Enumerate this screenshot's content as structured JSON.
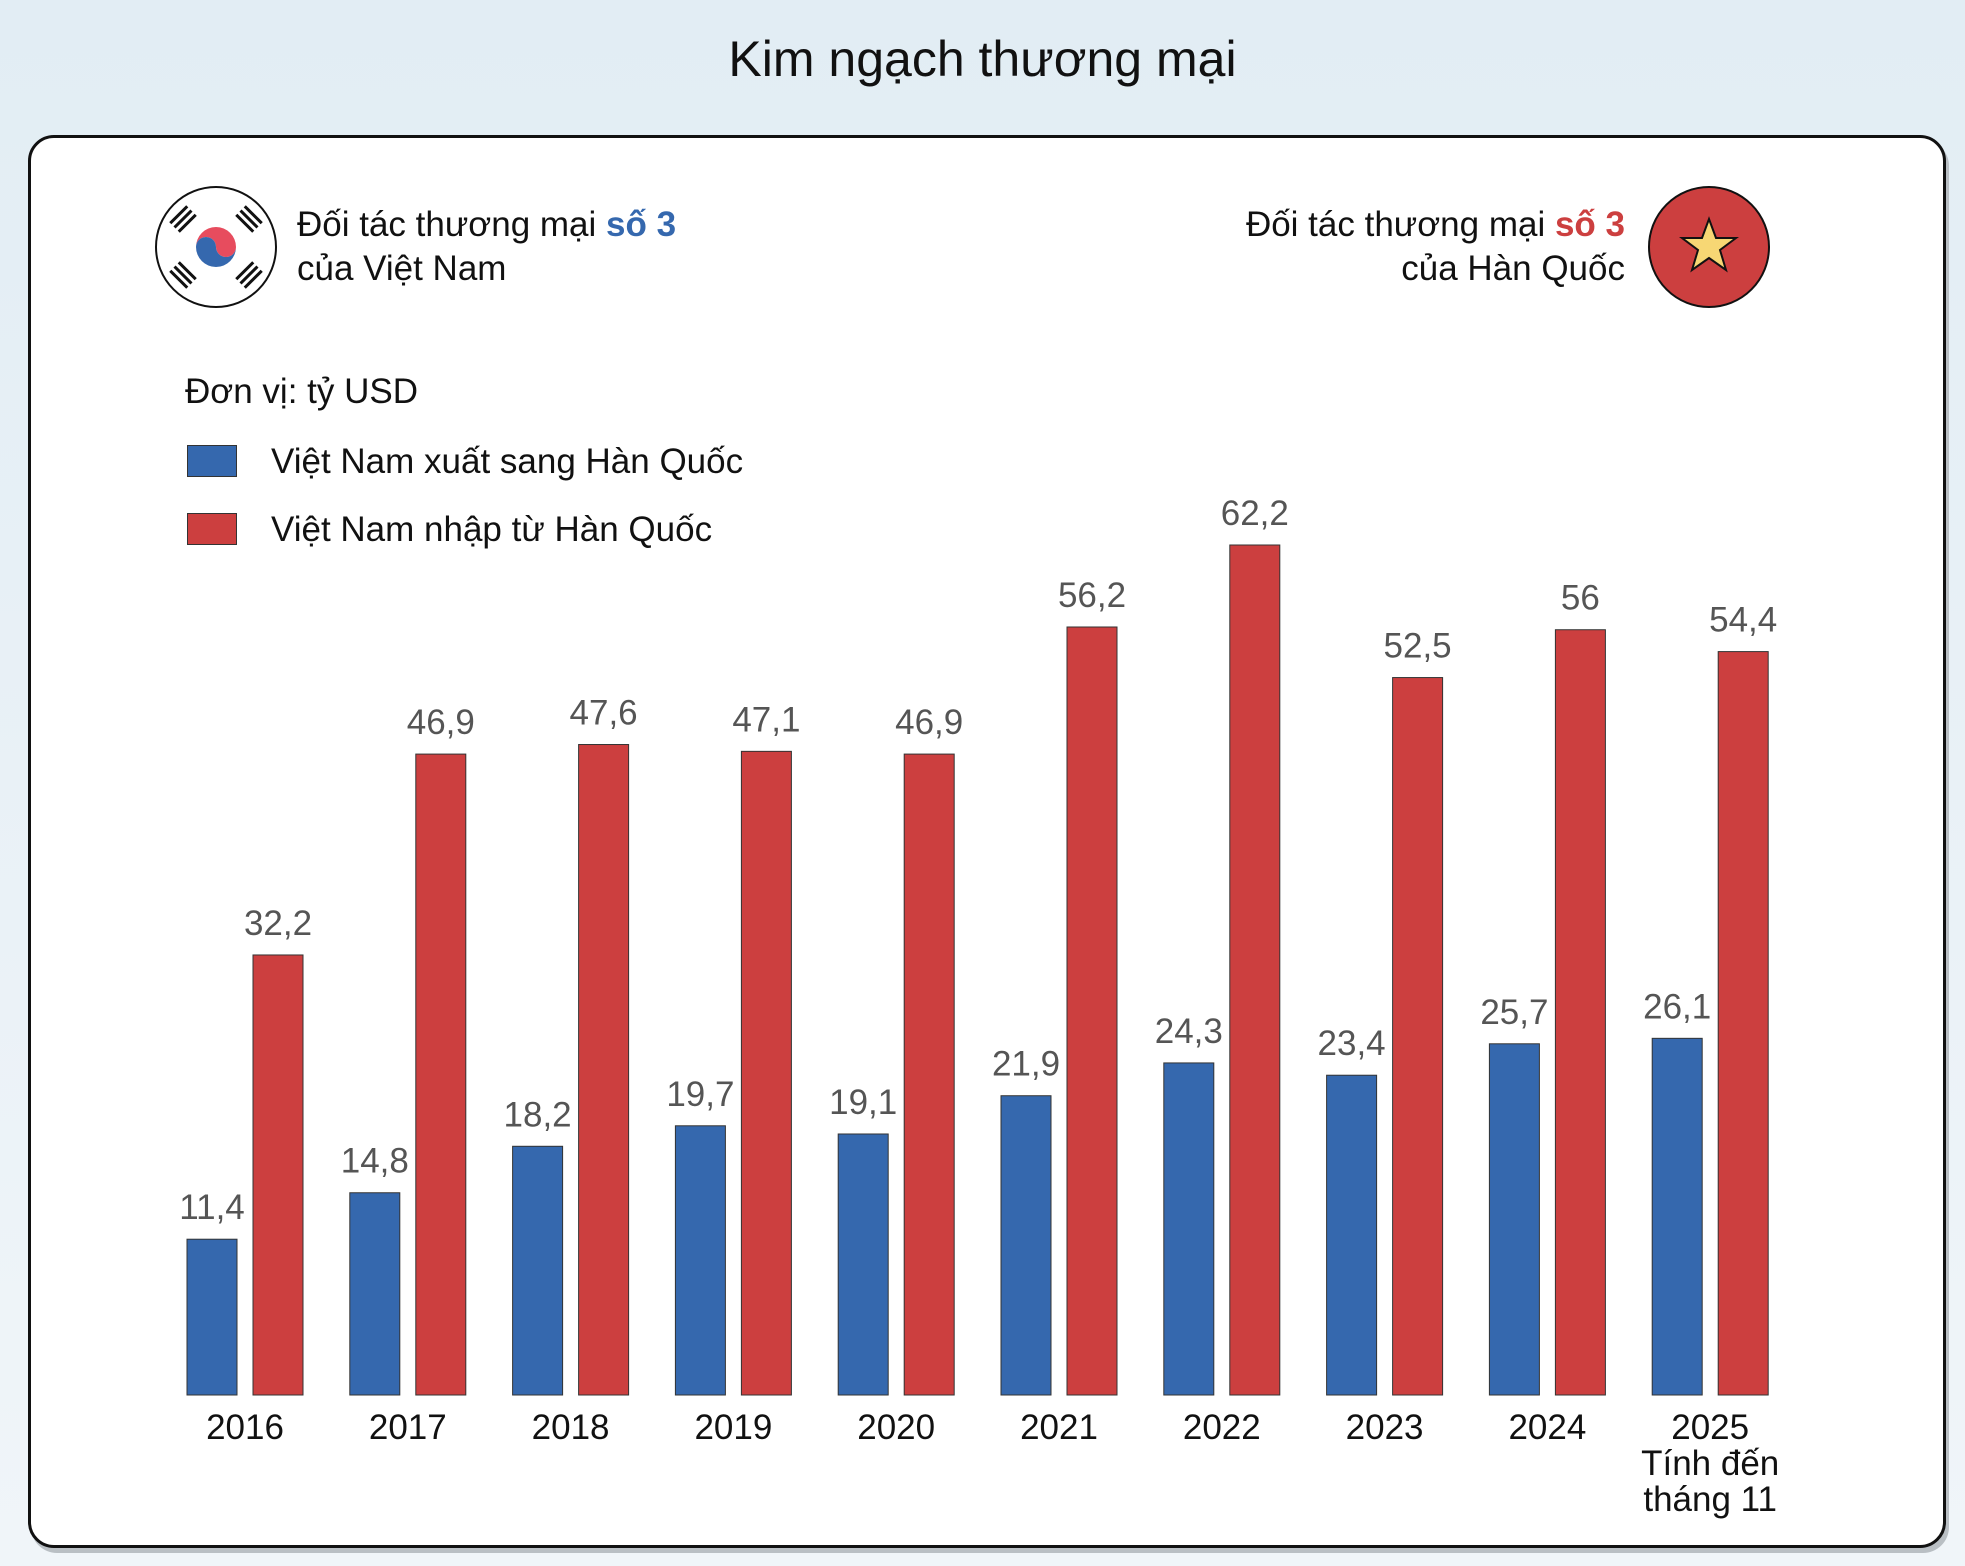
{
  "title": "Kim ngạch thương mại",
  "partner_left": {
    "line1": "Đối tác thương mại ",
    "rank": "số 3",
    "line2": "của Việt Nam",
    "flag-icon": "south-korea-flag",
    "rank_color": "#3568ae"
  },
  "partner_right": {
    "line1": "Đối tác thương mại ",
    "rank": "số 3",
    "line2": "của Hàn Quốc",
    "flag-icon": "vietnam-flag",
    "rank_color": "#cc3f3f"
  },
  "chart_data": {
    "type": "bar",
    "unit_label": "Đơn vị: tỷ USD",
    "categories": [
      "2016",
      "2017",
      "2018",
      "2019",
      "2020",
      "2021",
      "2022",
      "2023",
      "2024",
      "2025"
    ],
    "category_notes": {
      "2025": [
        "Tính đến",
        "tháng 11"
      ]
    },
    "series": [
      {
        "name": "Việt Nam xuất sang Hàn Quốc",
        "color": "#3568ae",
        "values": [
          11.4,
          14.8,
          18.2,
          19.7,
          19.1,
          21.9,
          24.3,
          23.4,
          25.7,
          26.1
        ],
        "labels": [
          "11,4",
          "14,8",
          "18,2",
          "19,7",
          "19,1",
          "21,9",
          "24,3",
          "23,4",
          "25,7",
          "26,1"
        ]
      },
      {
        "name": "Việt Nam nhập từ Hàn Quốc",
        "color": "#cc3f3f",
        "values": [
          32.2,
          46.9,
          47.6,
          47.1,
          46.9,
          56.2,
          62.2,
          52.5,
          56,
          54.4
        ],
        "labels": [
          "32,2",
          "46,9",
          "47,6",
          "47,1",
          "46,9",
          "56,2",
          "62,2",
          "52,5",
          "56",
          "54,4"
        ]
      },
      {
        "_": ""
      }
    ],
    "legend": "top-left",
    "grid": false,
    "ylim": [
      0,
      62.2
    ]
  }
}
